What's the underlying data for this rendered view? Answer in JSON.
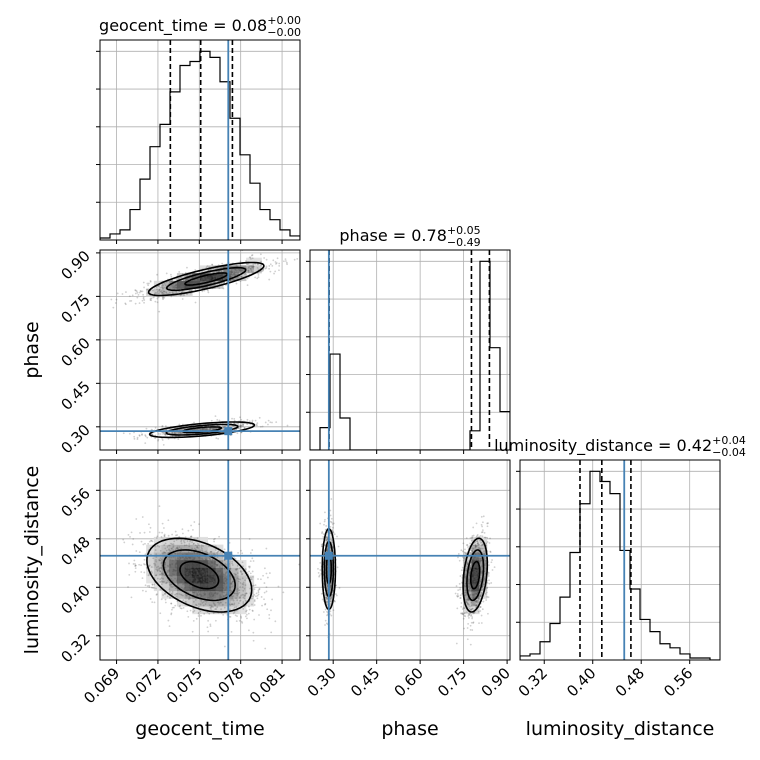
{
  "chart_data": {
    "type": "scatter",
    "subtype": "corner-plot",
    "params": [
      "geocent_time",
      "phase",
      "luminosity_distance"
    ],
    "axis_labels": [
      "geocent_time",
      "phase",
      "luminosity_distance"
    ],
    "titles": [
      {
        "prefix": "geocent_time = 0.08",
        "sup": "+0.00",
        "sub": "−0.00"
      },
      {
        "prefix": "phase = 0.78",
        "sup": "+0.05",
        "sub": "−0.49"
      },
      {
        "prefix": "luminosity_distance = 0.42",
        "sup": "+0.04",
        "sub": "−0.04"
      }
    ],
    "ranges": [
      [
        0.0678,
        0.0823
      ],
      [
        0.22,
        0.91
      ],
      [
        0.28,
        0.61
      ]
    ],
    "ticks": [
      {
        "values": [
          0.069,
          0.072,
          0.075,
          0.078,
          0.081
        ],
        "labels": [
          "0.069",
          "0.072",
          "0.075",
          "0.078",
          "0.081"
        ]
      },
      {
        "values": [
          0.3,
          0.45,
          0.6,
          0.75,
          0.9
        ],
        "labels": [
          "0.30",
          "0.45",
          "0.60",
          "0.75",
          "0.90"
        ]
      },
      {
        "values": [
          0.32,
          0.4,
          0.48,
          0.56
        ],
        "labels": [
          "0.32",
          "0.40",
          "0.48",
          "0.56"
        ]
      }
    ],
    "truths": [
      0.0771,
      0.285,
      0.452
    ],
    "quantiles": [
      [
        0.0729,
        0.0751,
        0.0774
      ],
      [
        0.286,
        0.777,
        0.839
      ],
      [
        0.379,
        0.415,
        0.463
      ]
    ],
    "histograms": [
      {
        "bin_edges_start": 0.0678,
        "bin_width": 0.000725,
        "counts": [
          1,
          3,
          5,
          15,
          30,
          46,
          57,
          73,
          86,
          88,
          93,
          90,
          78,
          60,
          42,
          28,
          15,
          10,
          5,
          2
        ]
      },
      {
        "bin_edges_start": 0.22,
        "bin_width": 0.0345,
        "counts": [
          0,
          7,
          30,
          10,
          0,
          0,
          0,
          0,
          0,
          0,
          0,
          0,
          0,
          0,
          0,
          0,
          6,
          59,
          32,
          12
        ]
      },
      {
        "bin_edges_start": 0.28,
        "bin_width": 0.0165,
        "counts": [
          2,
          3,
          9,
          18,
          31,
          53,
          77,
          93,
          88,
          82,
          54,
          35,
          20,
          14,
          8,
          6,
          3,
          1,
          1,
          0
        ]
      }
    ],
    "joint": {
      "1_0": {
        "modes": [
          {
            "mx": 0.0755,
            "my": 0.81,
            "sx": 0.0022,
            "sy": 0.03,
            "rho": 0.8,
            "w": 0.64
          },
          {
            "mx": 0.0752,
            "my": 0.29,
            "sx": 0.002,
            "sy": 0.014,
            "rho": 0.6,
            "w": 0.36
          }
        ]
      },
      "2_0": {
        "modes": [
          {
            "mx": 0.075,
            "my": 0.42,
            "sx": 0.002,
            "sy": 0.032,
            "rho": -0.4,
            "w": 1.0
          }
        ]
      },
      "2_1": {
        "modes": [
          {
            "mx": 0.285,
            "my": 0.43,
            "sx": 0.012,
            "sy": 0.035,
            "rho": 0.0,
            "w": 0.36
          },
          {
            "mx": 0.79,
            "my": 0.42,
            "sx": 0.022,
            "sy": 0.032,
            "rho": 0.3,
            "w": 0.64
          }
        ]
      }
    },
    "colors": {
      "truth": "#4682b4",
      "hist": "#000000",
      "grid": "#b0b0b0",
      "points": "#555555"
    }
  }
}
